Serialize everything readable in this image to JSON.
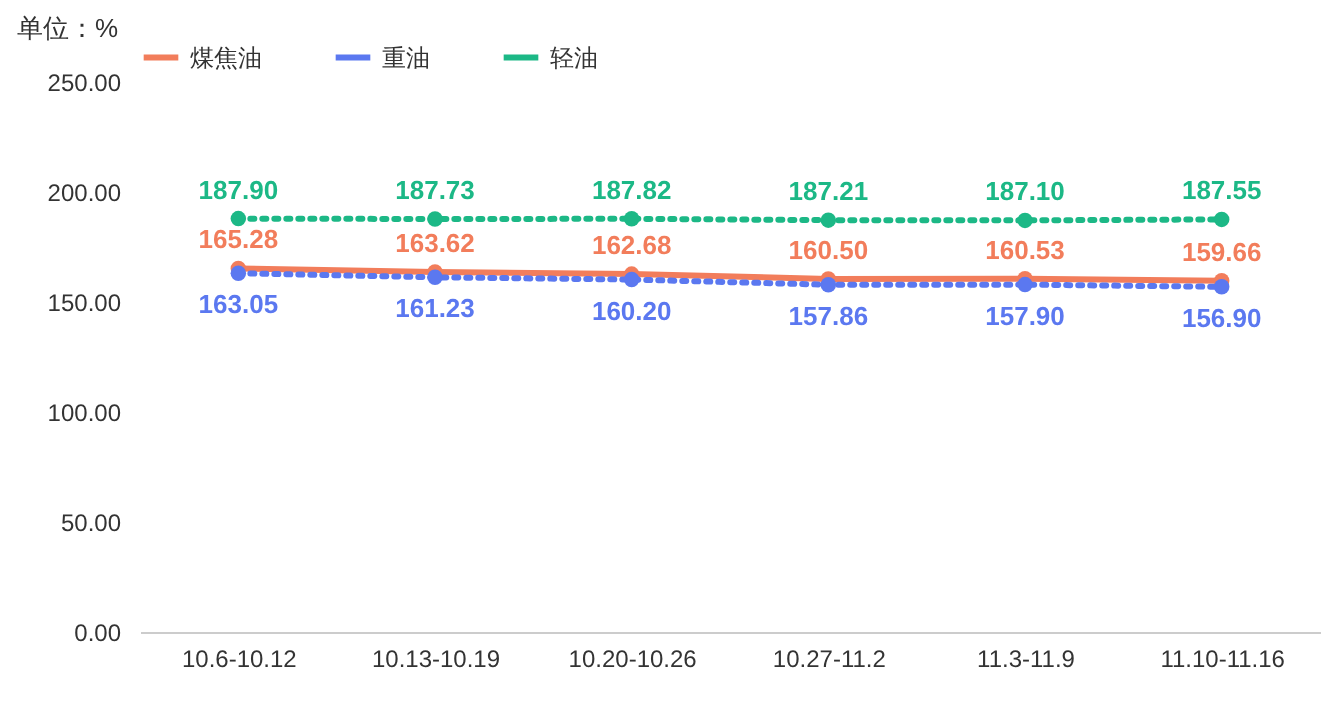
{
  "chart_data": {
    "type": "line",
    "ylabel": "单位：%",
    "categories": [
      "10.6-10.12",
      "10.13-10.19",
      "10.20-10.26",
      "10.27-11.2",
      "11.3-11.9",
      "11.10-11.16"
    ],
    "series": [
      {
        "name": "煤焦油",
        "color": "#f27d5b",
        "line_style": "solid",
        "values": [
          165.28,
          163.62,
          162.68,
          160.5,
          160.53,
          159.66
        ],
        "value_labels": [
          "165.28",
          "163.62",
          "162.68",
          "160.50",
          "160.53",
          "159.66"
        ]
      },
      {
        "name": "重油",
        "color": "#5b78f0",
        "line_style": "dotted",
        "values": [
          163.05,
          161.23,
          160.2,
          157.86,
          157.9,
          156.9
        ],
        "value_labels": [
          "163.05",
          "161.23",
          "160.20",
          "157.86",
          "157.90",
          "156.90"
        ]
      },
      {
        "name": "轻油",
        "color": "#1cb886",
        "line_style": "dotted",
        "values": [
          187.9,
          187.73,
          187.82,
          187.21,
          187.1,
          187.55
        ],
        "value_labels": [
          "187.90",
          "187.73",
          "187.82",
          "187.21",
          "187.10",
          "187.55"
        ]
      }
    ],
    "ylim": [
      0,
      250
    ],
    "yticks": [
      {
        "value": 0,
        "label": "0.00"
      },
      {
        "value": 50,
        "label": "50.00"
      },
      {
        "value": 100,
        "label": "100.00"
      },
      {
        "value": 150,
        "label": "150.00"
      },
      {
        "value": 200,
        "label": "200.00"
      },
      {
        "value": 250,
        "label": "250.00"
      }
    ],
    "grid": false,
    "legend": "top",
    "marker": "circle"
  }
}
